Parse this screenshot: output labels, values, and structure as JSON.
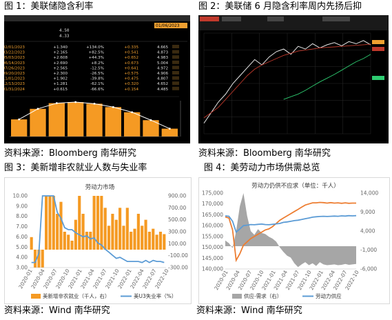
{
  "captions": {
    "fig1": "图 1：美联储隐含利率",
    "fig2": "图 2：美联储 6 月隐含利率周内先扬后抑",
    "fig3": "图 3：美新增非农就业人数与失业率",
    "fig4": "图 4：美劳动力市场供需总览",
    "src1": "资料来源：Bloomberg 南华研究",
    "src2": "资料来源：Bloomberg 南华研究",
    "src3": "资料来源：Wind 南华研究",
    "src4": "资料来源：Wind 南华研究"
  },
  "colors": {
    "bar_orange": "#f59a23",
    "line_blue": "#5b9bd5",
    "fill_gray": "#a6a6a6",
    "line_orange": "#ed7d31",
    "bbg_bg": "#000000"
  },
  "chart_data": [
    {
      "type": "table",
      "title": "隐含利率",
      "rows": [
        {
          "date": "02/01/2023",
          "hikes": "+1.340",
          "pct": "+134.0%",
          "rate_chg": "+0.335",
          "rate": "4.665"
        },
        {
          "date": "03/22/2023",
          "hikes": "+2.165",
          "pct": "+82.5%",
          "rate_chg": "+0.541",
          "rate": "4.873"
        },
        {
          "date": "05/03/2023",
          "hikes": "+2.608",
          "pct": "+44.3%",
          "rate_chg": "+0.652",
          "rate": "4.983"
        },
        {
          "date": "06/14/2023",
          "hikes": "+2.690",
          "pct": "+8.2%",
          "rate_chg": "+0.673",
          "rate": "5.004"
        },
        {
          "date": "07/26/2023",
          "hikes": "+2.565",
          "pct": "-12.5%",
          "rate_chg": "+0.641",
          "rate": "4.972"
        },
        {
          "date": "09/20/2023",
          "hikes": "+2.300",
          "pct": "-26.5%",
          "rate_chg": "+0.575",
          "rate": "4.906"
        },
        {
          "date": "11/01/2023",
          "hikes": "+1.902",
          "pct": "-39.8%",
          "rate_chg": "+0.475",
          "rate": "4.807"
        },
        {
          "date": "12/13/2023",
          "hikes": "+1.281",
          "pct": "-62.1%",
          "rate_chg": "+0.320",
          "rate": "4.652"
        },
        {
          "date": "01/31/2024",
          "hikes": "+0.615",
          "pct": "-66.6%",
          "rate_chg": "+0.154",
          "rate": "4.485"
        }
      ],
      "bar_values": [
        0.335,
        0.541,
        0.652,
        0.673,
        0.641,
        0.575,
        0.475,
        0.32,
        0.154
      ],
      "header_values": [
        "4.50",
        "4.33"
      ],
      "header_date": "01/06/2023"
    },
    {
      "type": "line",
      "series": [
        {
          "values": [
            3.5,
            3.7,
            3.9,
            4.05,
            4.25,
            4.4,
            4.55,
            4.7,
            4.6,
            4.75,
            4.85,
            4.9,
            4.8,
            4.95,
            4.9,
            5.0,
            4.92,
            4.98,
            5.02,
            4.96,
            5.04,
            5.0,
            5.06,
            4.98
          ]
        },
        {
          "values": [
            3.6,
            3.7,
            3.8,
            3.95,
            4.1,
            4.25,
            4.4,
            4.52,
            4.6,
            4.66,
            4.72,
            4.78,
            4.82,
            4.86,
            4.88,
            4.9,
            4.92,
            4.93,
            4.94,
            4.95,
            4.96,
            4.97,
            4.98,
            4.99
          ]
        },
        {
          "values": [
            null,
            null,
            null,
            null,
            null,
            null,
            null,
            null,
            null,
            null,
            null,
            3.95,
            4.0,
            4.05,
            4.12,
            4.2,
            4.28,
            4.35,
            4.42,
            4.5,
            4.58,
            4.66,
            4.72,
            4.8
          ]
        }
      ]
    },
    {
      "type": "bar",
      "title": "劳动力市场",
      "x_ticks": [
        "2020-01",
        "2020-04",
        "2020-07",
        "2020-10",
        "2021-01",
        "2021-04",
        "2021-07",
        "2021-10",
        "2022-01",
        "2022-04",
        "2022-07",
        "2022-10"
      ],
      "y_left": [
        "10.00",
        "9.00",
        "8.00",
        "7.00",
        "6.00",
        "5.00",
        "4.00",
        "3.00"
      ],
      "y_right": [
        "900.00",
        "700.00",
        "500.00",
        "300.00",
        "100.00",
        "-100.00",
        "-300.00"
      ],
      "bars_series": "美新增非农就业（千人，右）",
      "line_series": "美U3失业率（%）",
      "bars": [
        210,
        -700,
        -1500,
        -700,
        2700,
        1600,
        1400,
        600,
        800,
        300,
        250,
        150,
        500,
        1100,
        600,
        300,
        300,
        900,
        1200,
        1500,
        700,
        400,
        600,
        500,
        700,
        400,
        700,
        300,
        350,
        600,
        400,
        500,
        300,
        350,
        250,
        300,
        260
      ],
      "unemployment": [
        3.5,
        3.5,
        4.4,
        14.7,
        13.3,
        11.1,
        10.2,
        8.4,
        7.8,
        6.9,
        6.7,
        6.7,
        6.4,
        6.2,
        6.0,
        6.1,
        5.8,
        5.9,
        5.4,
        5.2,
        4.8,
        4.5,
        4.2,
        3.9,
        4.0,
        3.8,
        3.6,
        3.6,
        3.6,
        3.6,
        3.5,
        3.7,
        3.5,
        3.7,
        3.6,
        3.6,
        3.5
      ]
    },
    {
      "type": "area",
      "title": "劳动力仍供不应求（单位：千人）",
      "x_ticks": [
        "2020-01",
        "2020-04",
        "2020-07",
        "2020-10",
        "2021-01",
        "2021-04",
        "2021-07",
        "2021-10",
        "2022-01",
        "2022-04",
        "2022-07",
        "2022-10"
      ],
      "y_left": [
        "175,000",
        "170,000",
        "165,000",
        "160,000",
        "155,000",
        "150,000",
        "145,000",
        "140,000"
      ],
      "y_right": [
        "14,000",
        "9,000",
        "4,000",
        "-1,000",
        "-6,000"
      ],
      "gap_series": "供应-需求（右）",
      "supply_series": "劳动力供应",
      "gap": [
        1500,
        800,
        -500,
        4000,
        10500,
        14000,
        8000,
        4000,
        3000,
        4500,
        3500,
        3200,
        2500,
        2000,
        1200,
        -300,
        -1500,
        -2500,
        -3000,
        -4500,
        -5500,
        -4800,
        -4200,
        -5000,
        -4500,
        -5200,
        -4200,
        -4800,
        -5000,
        -4900,
        -4800,
        -5000,
        -4900,
        -4700,
        -4900,
        -4800,
        -4700
      ],
      "demand": [
        164000,
        163500,
        158000,
        144000,
        147000,
        151000,
        152500,
        154000,
        155000,
        156000,
        157000,
        158000,
        158500,
        159500,
        161000,
        162500,
        163500,
        164500,
        165500,
        166500,
        167500,
        168500,
        169500,
        170000,
        170500,
        170500,
        170700,
        170600,
        170400,
        170600,
        170400,
        170500,
        170300,
        170500,
        170300,
        170400,
        170400
      ],
      "supply": [
        164500,
        164300,
        162000,
        157000,
        158500,
        160000,
        160200,
        160500,
        160400,
        160600,
        160700,
        160500,
        160400,
        160600,
        160800,
        161000,
        161500,
        161700,
        162000,
        162300,
        162500,
        162800,
        163200,
        163500,
        163900,
        164100,
        164200,
        164300,
        164200,
        164300,
        164400,
        164300,
        164500,
        164400,
        164600,
        164500,
        164600
      ]
    }
  ]
}
